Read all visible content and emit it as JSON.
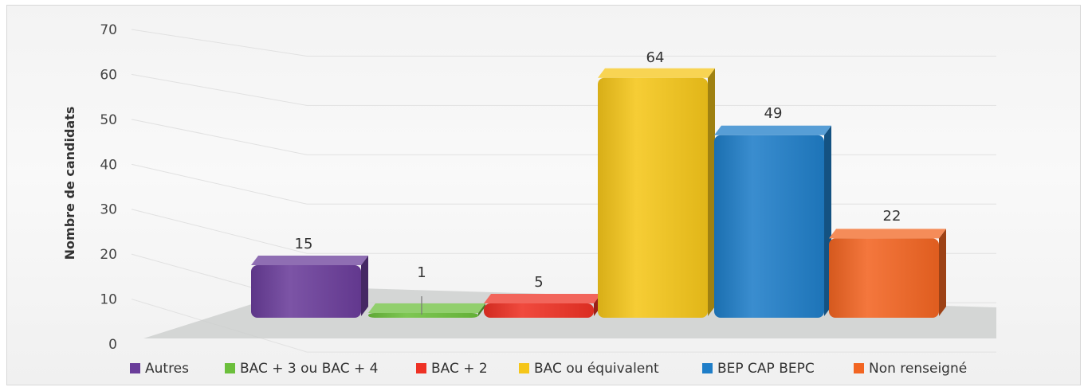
{
  "chart_data": {
    "type": "bar",
    "title": "",
    "xlabel": "",
    "ylabel": "Nombre de candidats",
    "ylim": [
      0,
      70
    ],
    "yticks": [
      0,
      10,
      20,
      30,
      40,
      50,
      60,
      70
    ],
    "grid": true,
    "legend_position": "bottom",
    "series": [
      {
        "name": "Autres",
        "value": 15,
        "color": "#6a3d9a"
      },
      {
        "name": "BAC + 3 ou BAC + 4",
        "value": 1,
        "color": "#6cbf3c"
      },
      {
        "name": "BAC + 2",
        "value": 5,
        "color": "#ee3124"
      },
      {
        "name": "BAC ou équivalent",
        "value": 64,
        "color": "#f5c61a"
      },
      {
        "name": "BEP CAP BEPC",
        "value": 49,
        "color": "#1f7ec8"
      },
      {
        "name": "Non renseigné",
        "value": 22,
        "color": "#f26522"
      }
    ]
  }
}
